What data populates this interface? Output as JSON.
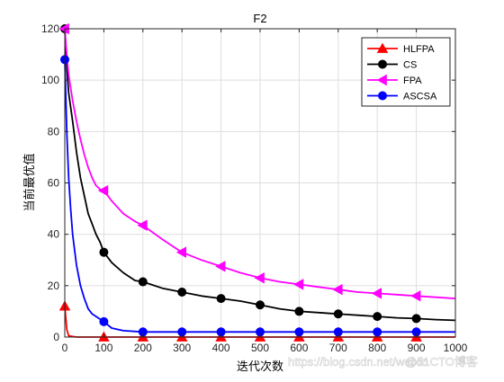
{
  "chart_data": {
    "type": "line",
    "title": "F2",
    "xlabel": "迭代次数",
    "ylabel": "当前最优值",
    "xlim": [
      0,
      1000
    ],
    "ylim": [
      0,
      120
    ],
    "xticks": [
      0,
      100,
      200,
      300,
      400,
      500,
      600,
      700,
      800,
      900,
      1000
    ],
    "yticks": [
      0,
      20,
      40,
      60,
      80,
      100,
      120
    ],
    "grid": true,
    "legend_position": "top-right",
    "series": [
      {
        "name": "HLFPA",
        "color": "#ff0000",
        "marker": "triangle-up",
        "x": [
          0,
          5,
          10,
          30,
          100,
          200,
          300,
          400,
          500,
          600,
          700,
          800,
          900,
          1000
        ],
        "y": [
          12,
          3,
          0.5,
          0,
          0,
          0,
          0,
          0,
          0,
          0,
          0,
          0,
          0,
          0
        ],
        "marker_x": [
          0,
          100,
          200,
          300,
          400,
          500,
          600,
          700,
          800,
          900
        ]
      },
      {
        "name": "CS",
        "color": "#000000",
        "marker": "circle",
        "x": [
          0,
          5,
          10,
          20,
          30,
          40,
          50,
          60,
          70,
          80,
          90,
          100,
          120,
          150,
          180,
          200,
          250,
          300,
          350,
          400,
          450,
          500,
          550,
          600,
          650,
          700,
          750,
          800,
          850,
          900,
          950,
          1000
        ],
        "y": [
          120,
          105,
          95,
          84,
          72,
          62,
          55,
          48,
          44,
          40,
          37,
          33,
          29,
          25,
          22,
          21.5,
          19,
          17.5,
          16,
          15,
          14,
          12.5,
          11,
          10,
          9.5,
          9,
          8.5,
          8,
          7.5,
          7.2,
          6.8,
          6.5
        ],
        "marker_x": [
          0,
          100,
          200,
          300,
          400,
          500,
          600,
          700,
          800,
          900
        ]
      },
      {
        "name": "FPA",
        "color": "#ff00ff",
        "marker": "triangle-left",
        "x": [
          0,
          5,
          10,
          20,
          30,
          40,
          50,
          60,
          70,
          80,
          90,
          100,
          120,
          150,
          180,
          200,
          250,
          300,
          350,
          400,
          450,
          500,
          550,
          600,
          650,
          700,
          750,
          800,
          850,
          900,
          950,
          1000
        ],
        "y": [
          120,
          110,
          102,
          92,
          84,
          77,
          71,
          66,
          62,
          59,
          57.5,
          57,
          53,
          48,
          45,
          43.5,
          38,
          33,
          30,
          27.5,
          25,
          23,
          21.5,
          20.5,
          19.5,
          18.5,
          17.5,
          17,
          16.5,
          16,
          15.5,
          15
        ],
        "marker_x": [
          0,
          100,
          200,
          300,
          400,
          500,
          600,
          700,
          800,
          900
        ]
      },
      {
        "name": "ASCSA",
        "color": "#0000ff",
        "marker": "circle",
        "x": [
          0,
          5,
          10,
          15,
          20,
          30,
          40,
          50,
          60,
          70,
          80,
          90,
          100,
          120,
          150,
          200,
          300,
          400,
          500,
          600,
          700,
          800,
          900,
          1000
        ],
        "y": [
          108,
          80,
          62,
          50,
          40,
          28,
          20,
          15,
          11,
          9,
          8,
          7,
          6,
          3.5,
          2.5,
          2,
          2,
          2,
          2,
          2,
          2,
          2,
          2,
          2
        ],
        "marker_x": [
          0,
          100,
          200,
          300,
          400,
          500,
          600,
          700,
          800,
          900
        ]
      }
    ]
  },
  "watermark": {
    "url_text": "https://blog.csdn.net/weixin",
    "brand_text": "@51CTO博客"
  }
}
